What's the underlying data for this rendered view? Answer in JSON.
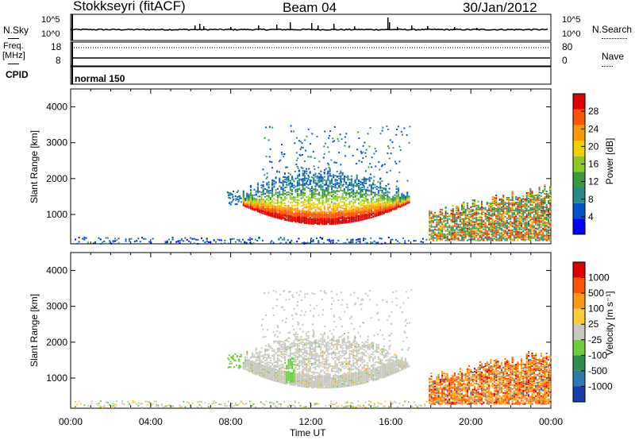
{
  "header": {
    "title": "Stokkseyri (fitACF)",
    "beam": "Beam 04",
    "date": "30/Jan/2012"
  },
  "top_panels": {
    "nsky_label": "N.Sky",
    "nsky_ticks": [
      "10^5",
      "10^0"
    ],
    "nsky_right_ticks": [
      "10^5",
      "10^0"
    ],
    "nsearch_label": "N.Search",
    "freq_label": "Freq.",
    "freq_unit": "[MHz]",
    "freq_ticks": [
      "18",
      "8"
    ],
    "nave_ticks": [
      "80",
      "0"
    ],
    "nave_label": "Nave",
    "cpid_label": "CPID",
    "cpid_value": "normal 150"
  },
  "power_panel": {
    "ylabel": "Slant Range [km]",
    "yticks": [
      "4000",
      "3000",
      "2000",
      "1000"
    ],
    "colorbar_label": "Power [dB]",
    "colorbar_ticks": [
      "28",
      "24",
      "20",
      "16",
      "12",
      "8",
      "4"
    ],
    "colors": [
      "#0000ff",
      "#0055cc",
      "#2a8a8a",
      "#3a9a3a",
      "#88cc22",
      "#f0d000",
      "#ff9900",
      "#ff5500",
      "#e00000"
    ]
  },
  "velocity_panel": {
    "ylabel": "Slant Range [km]",
    "yticks": [
      "4000",
      "3000",
      "2000",
      "1000"
    ],
    "colorbar_label": "Velocity [m s⁻¹]",
    "colorbar_ticks": [
      "1000",
      "500",
      "100",
      "25",
      "-25",
      "-100",
      "-500",
      "-1000"
    ],
    "colors": [
      "#1a3fb0",
      "#2a7ab0",
      "#2f8f4f",
      "#6ccf3a",
      "#c8c8c0",
      "#ffcc33",
      "#ff9911",
      "#ff5500",
      "#e00000"
    ]
  },
  "xaxis": {
    "label": "Time UT",
    "ticks": [
      "00:00",
      "04:00",
      "08:00",
      "12:00",
      "16:00",
      "20:00",
      "00:00"
    ]
  },
  "chart_data": [
    {
      "type": "heatmap",
      "title": "Power",
      "x_range_hours": [
        0,
        24
      ],
      "y_range_km": [
        180,
        4500
      ],
      "colorbar_range_db": [
        0,
        32
      ],
      "regions": [
        {
          "t_start": 9.0,
          "t_end": 16.5,
          "range_center": 1400,
          "level": "mixed",
          "note_visible": "arc of backscatter"
        },
        {
          "t_start": 18.0,
          "t_end": 24.0,
          "range_center": 800,
          "level": "mixed"
        }
      ]
    },
    {
      "type": "heatmap",
      "title": "Velocity",
      "x_range_hours": [
        0,
        24
      ],
      "y_range_km": [
        180,
        4500
      ],
      "colorbar_range_ms": [
        -1000,
        1000
      ]
    }
  ]
}
